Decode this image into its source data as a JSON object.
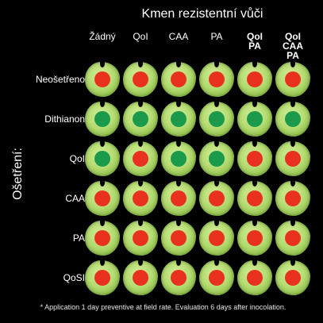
{
  "title": "Kmen rezistentní vůči",
  "side_title": "Ošetření:",
  "columns": [
    {
      "label": "Žádný",
      "bold": false
    },
    {
      "label": "QoI",
      "bold": false
    },
    {
      "label": "CAA",
      "bold": false
    },
    {
      "label": "PA",
      "bold": false
    },
    {
      "label": "QoI\nPA",
      "bold": true
    },
    {
      "label": "QoI\nCAA\nPA",
      "bold": true
    }
  ],
  "rows": [
    {
      "label": "Neošetřeno",
      "cells": [
        "red",
        "red",
        "red",
        "red",
        "red",
        "red"
      ]
    },
    {
      "label": "Dithianon",
      "cells": [
        "green",
        "green",
        "green",
        "green",
        "green",
        "green"
      ]
    },
    {
      "label": "QoI",
      "cells": [
        "green",
        "red",
        "green",
        "green",
        "red",
        "red"
      ]
    },
    {
      "label": "CAA",
      "cells": [
        "red",
        "red",
        "red",
        "red",
        "red",
        "red"
      ]
    },
    {
      "label": "PA",
      "cells": [
        "red",
        "red",
        "red",
        "red",
        "red",
        "red"
      ]
    },
    {
      "label": "QoSI",
      "cells": [
        "red",
        "red",
        "red",
        "red",
        "red",
        "red"
      ]
    }
  ],
  "colors": {
    "red": "#e8321f",
    "green": "#1a9a4a"
  },
  "footnote": "* Application 1 day preventive at field rate. Evaluation 6 days after inocolation."
}
